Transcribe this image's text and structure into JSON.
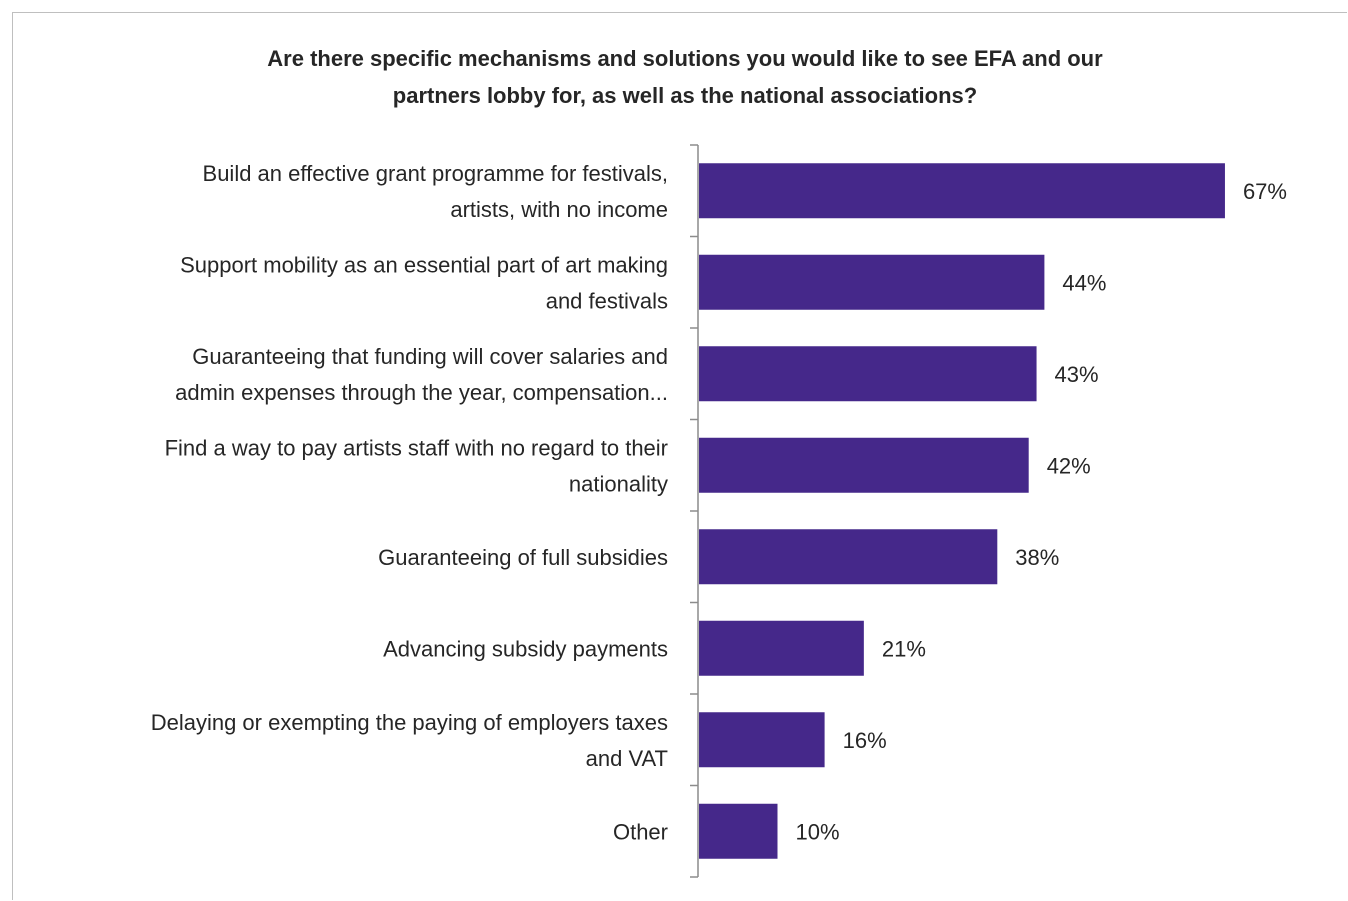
{
  "chart_data": {
    "type": "bar",
    "orientation": "horizontal",
    "title_lines": [
      "Are there specific mechanisms and solutions you would like to see EFA and our",
      "partners lobby for, as well as the national associations?"
    ],
    "categories": [
      [
        "Build an effective grant programme for festivals,",
        "artists, with no income"
      ],
      [
        "Support mobility as an essential part of art making",
        "and festivals"
      ],
      [
        "Guaranteeing that funding will cover salaries and",
        "admin expenses through the year, compensation..."
      ],
      [
        "Find a way to pay artists staff with no regard to their",
        "nationality"
      ],
      [
        "Guaranteeing of full subsidies"
      ],
      [
        "Advancing subsidy payments"
      ],
      [
        "Delaying or exempting the paying of employers taxes",
        "and VAT"
      ],
      [
        "Other"
      ]
    ],
    "values": [
      67,
      44,
      43,
      42,
      38,
      21,
      16,
      10
    ],
    "value_labels": [
      "67%",
      "44%",
      "43%",
      "42%",
      "38%",
      "21%",
      "16%",
      "10%"
    ],
    "xlim": [
      0,
      100
    ],
    "grid": false,
    "legend": "none",
    "bar_color": "#45288a"
  }
}
